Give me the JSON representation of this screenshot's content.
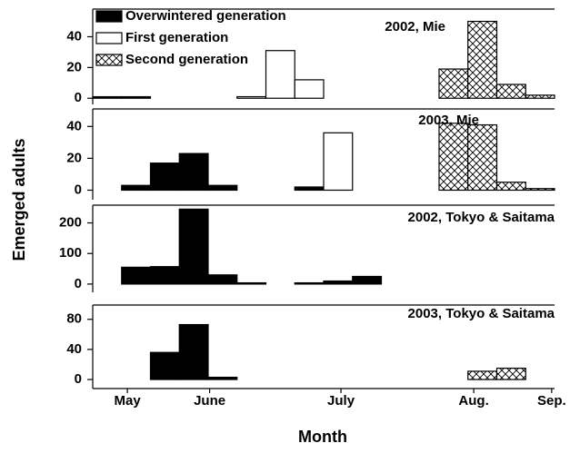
{
  "ylabel": "Emerged adults",
  "xlabel": "Month",
  "bins": [
    0,
    1,
    2,
    3,
    4,
    5,
    6,
    7,
    8,
    9,
    10,
    11,
    12,
    13,
    14,
    15,
    16
  ],
  "xlim": [
    0,
    16
  ],
  "xticks": [
    {
      "value": 1.2,
      "label": "May"
    },
    {
      "value": 4.05,
      "label": "June"
    },
    {
      "value": 8.6,
      "label": "July"
    },
    {
      "value": 13.2,
      "label": "Aug."
    },
    {
      "value": 15.9,
      "label": "Sep."
    }
  ],
  "chart_data": [
    {
      "type": "bar",
      "title": "2002, Mie",
      "ylim": [
        -4,
        58
      ],
      "yticks": [
        0,
        20,
        40
      ],
      "legend": "top-left",
      "series": [
        {
          "name": "Overwintered generation",
          "color": "#000000",
          "hatch": false,
          "values": [
            1,
            1,
            null,
            null,
            null,
            null,
            null,
            null,
            null,
            null,
            null,
            null,
            null,
            null,
            null,
            null
          ]
        },
        {
          "name": "First generation",
          "color": "#ffffff",
          "hatch": false,
          "values": [
            null,
            null,
            null,
            null,
            null,
            1,
            31,
            12,
            null,
            null,
            null,
            null,
            null,
            null,
            null,
            null
          ]
        },
        {
          "name": "Second generation",
          "color": "#ffffff",
          "hatch": true,
          "values": [
            null,
            null,
            null,
            null,
            null,
            null,
            null,
            null,
            null,
            null,
            null,
            null,
            19,
            50,
            9,
            2
          ]
        }
      ]
    },
    {
      "type": "bar",
      "title": "2003, Mie",
      "ylim": [
        -6,
        51
      ],
      "yticks": [
        0,
        20,
        40
      ],
      "series": [
        {
          "color": "#000000",
          "hatch": false,
          "values": [
            null,
            3,
            17,
            23,
            3,
            null,
            null,
            2,
            null,
            null,
            null,
            null,
            null,
            null,
            null,
            null
          ]
        },
        {
          "color": "#ffffff",
          "hatch": false,
          "values": [
            null,
            null,
            null,
            null,
            null,
            null,
            null,
            null,
            36,
            null,
            null,
            null,
            null,
            null,
            null,
            null
          ]
        },
        {
          "color": "#ffffff",
          "hatch": true,
          "values": [
            null,
            null,
            null,
            null,
            null,
            null,
            null,
            null,
            null,
            null,
            null,
            null,
            42,
            41,
            5,
            1
          ]
        }
      ]
    },
    {
      "type": "bar",
      "title": "2002, Tokyo & Saitama",
      "ylim": [
        -27,
        258
      ],
      "yticks": [
        0,
        100,
        200
      ],
      "series": [
        {
          "color": "#000000",
          "hatch": false,
          "values": [
            null,
            55,
            57,
            245,
            30,
            4,
            null,
            4,
            10,
            25,
            null,
            null,
            null,
            null,
            null,
            null
          ]
        }
      ]
    },
    {
      "type": "bar",
      "title": "2003, Tokyo & Saitama",
      "ylim": [
        -12,
        99
      ],
      "yticks": [
        0,
        40,
        80
      ],
      "series": [
        {
          "color": "#000000",
          "hatch": false,
          "values": [
            null,
            null,
            36,
            73,
            3,
            null,
            null,
            null,
            null,
            null,
            null,
            null,
            null,
            null,
            null,
            null
          ]
        },
        {
          "color": "#ffffff",
          "hatch": true,
          "values": [
            null,
            null,
            null,
            null,
            null,
            null,
            null,
            null,
            null,
            null,
            null,
            null,
            null,
            11,
            15,
            null
          ]
        }
      ]
    }
  ]
}
